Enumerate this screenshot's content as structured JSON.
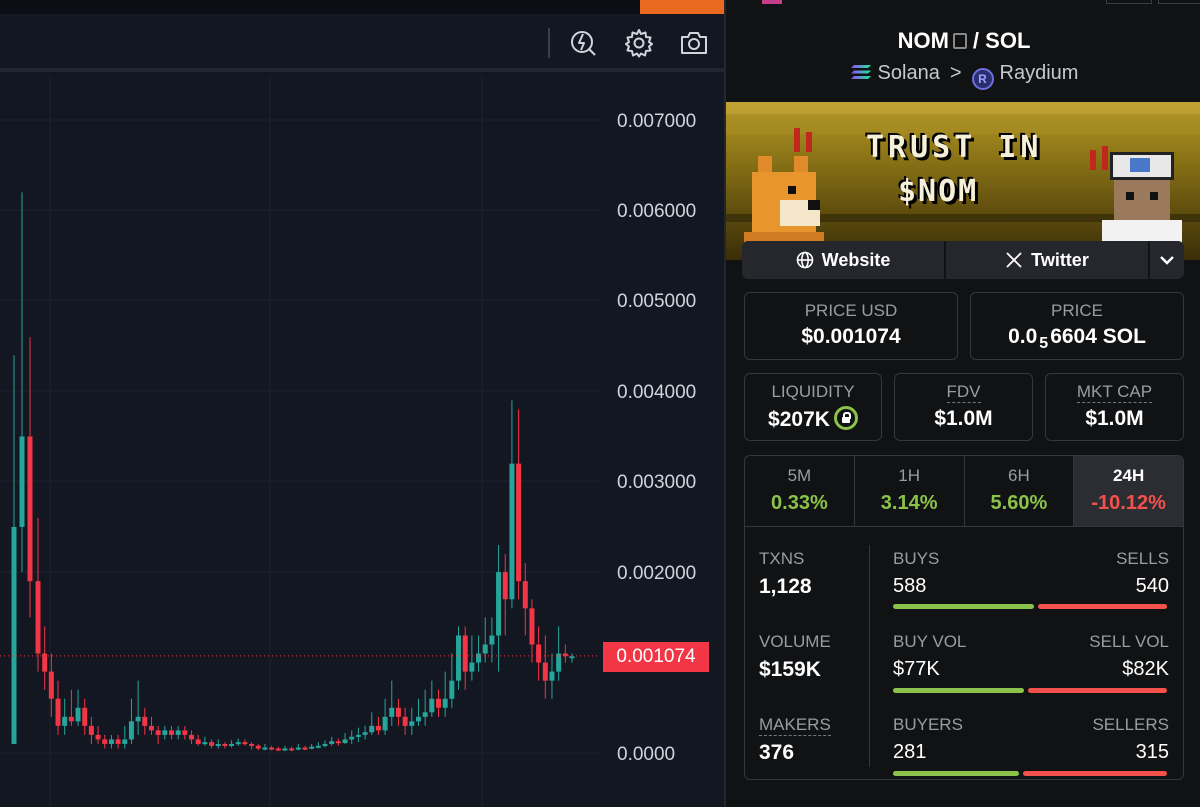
{
  "chart": {
    "y_labels": [
      "0.007000",
      "0.006000",
      "0.005000",
      "0.004000",
      "0.003000",
      "0.002000",
      "0.0000"
    ],
    "current_price_tag": "0.001074",
    "up_color": "#26a69a",
    "down_color": "#f23645"
  },
  "pair": {
    "base": "NOM",
    "separator": "/",
    "quote": "SOL",
    "chain": "Solana",
    "dex": "Raydium",
    "dex_icon_letter": "R"
  },
  "banner": {
    "line1": "TRUST IN",
    "line2": "$NOM"
  },
  "links": {
    "website": "Website",
    "twitter": "Twitter"
  },
  "stats": {
    "price_usd_label": "PRICE USD",
    "price_usd": "$0.001074",
    "price_label": "PRICE",
    "price_sol_prefix": "0.0",
    "price_sol_sub": "5",
    "price_sol_rest": "6604 SOL",
    "liquidity_label": "LIQUIDITY",
    "liquidity": "$207K",
    "fdv_label": "FDV",
    "fdv": "$1.0M",
    "mktcap_label": "MKT CAP",
    "mktcap": "$1.0M"
  },
  "timeframes": [
    {
      "label": "5M",
      "value": "0.33%",
      "direction": "up"
    },
    {
      "label": "1H",
      "value": "3.14%",
      "direction": "up"
    },
    {
      "label": "6H",
      "value": "5.60%",
      "direction": "up"
    },
    {
      "label": "24H",
      "value": "-10.12%",
      "direction": "down",
      "active": true
    }
  ],
  "txns": {
    "txns_label": "TXNS",
    "txns": "1,128",
    "buys_label": "BUYS",
    "buys": "588",
    "sells_label": "SELLS",
    "sells": "540",
    "volume_label": "VOLUME",
    "volume": "$159K",
    "buy_vol_label": "BUY VOL",
    "buy_vol": "$77K",
    "sell_vol_label": "SELL VOL",
    "sell_vol": "$82K",
    "makers_label": "MAKERS",
    "makers": "376",
    "buyers_label": "BUYERS",
    "buyers": "281",
    "sellers_label": "SELLERS",
    "sellers": "315"
  }
}
